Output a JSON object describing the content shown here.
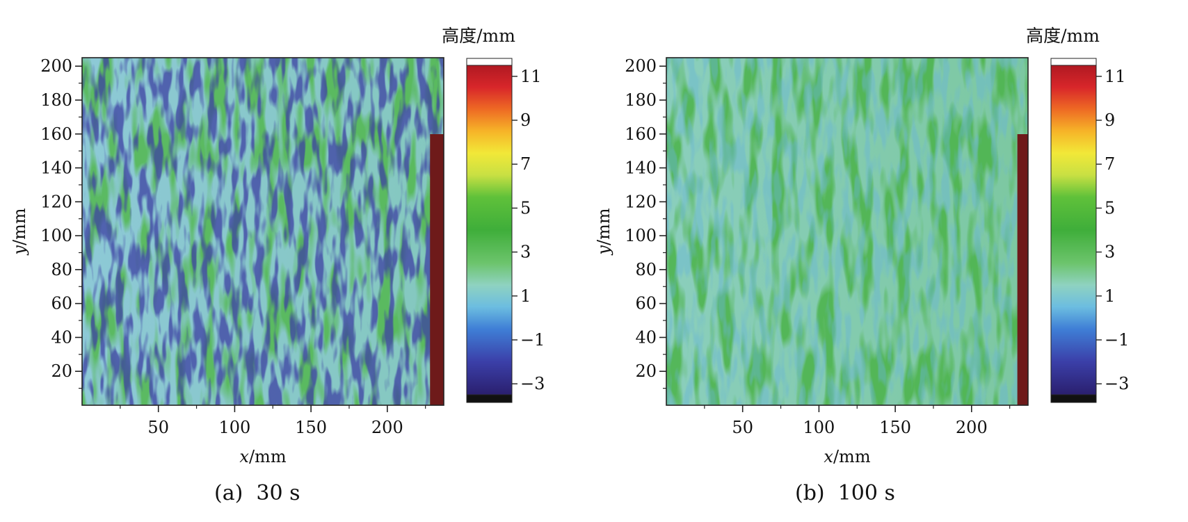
{
  "colorbar": {
    "title": "高度/mm",
    "ticks": [
      "11",
      "9",
      "7",
      "5",
      "3",
      "1",
      "−1",
      "−3"
    ],
    "tick_values": [
      11,
      9,
      7,
      5,
      3,
      1,
      -1,
      -3
    ],
    "range": [
      -3.5,
      11.5
    ],
    "colors": {
      "below_min": "#111111",
      "above_max": "#ffffff",
      "stops": [
        {
          "value": -3.5,
          "color": "#2a1f6e"
        },
        {
          "value": -2.0,
          "color": "#3b3fa8"
        },
        {
          "value": -0.5,
          "color": "#3f7fd6"
        },
        {
          "value": 0.5,
          "color": "#6cbde0"
        },
        {
          "value": 1.5,
          "color": "#8fd2c0"
        },
        {
          "value": 2.5,
          "color": "#6cc46c"
        },
        {
          "value": 4.0,
          "color": "#3fae3a"
        },
        {
          "value": 5.5,
          "color": "#5fc13a"
        },
        {
          "value": 6.5,
          "color": "#c8e043"
        },
        {
          "value": 7.5,
          "color": "#f2e838"
        },
        {
          "value": 8.5,
          "color": "#f6b428"
        },
        {
          "value": 9.5,
          "color": "#ee6a24"
        },
        {
          "value": 10.5,
          "color": "#d8262a"
        },
        {
          "value": 11.5,
          "color": "#b01922"
        }
      ]
    }
  },
  "chart_data": [
    {
      "type": "heatmap",
      "caption": "(a)  30 s",
      "xlabel_var": "x",
      "xlabel_unit": "/mm",
      "ylabel_var": "y",
      "ylabel_unit": "/mm",
      "xlim": [
        0,
        237
      ],
      "ylim": [
        0,
        205
      ],
      "xticks": [
        50,
        100,
        150,
        200
      ],
      "yticks": [
        20,
        40,
        60,
        80,
        100,
        120,
        140,
        160,
        180,
        200
      ],
      "z_unit": "mm",
      "mean_height": 1.0,
      "height_range_estimate": [
        -2.5,
        3.5
      ],
      "edge_region_height": 11,
      "edge_region_x": [
        228,
        237
      ],
      "colors": {
        "base": "#8ec9d9",
        "mid": "#7cc6a8",
        "high": "#52b84f",
        "low": "#3c3fa3",
        "edge": "#6e1a1a"
      }
    },
    {
      "type": "heatmap",
      "caption": "(b)  100 s",
      "xlabel_var": "x",
      "xlabel_unit": "/mm",
      "ylabel_var": "y",
      "ylabel_unit": "/mm",
      "xlim": [
        0,
        237
      ],
      "ylim": [
        0,
        205
      ],
      "xticks": [
        50,
        100,
        150,
        200
      ],
      "yticks": [
        20,
        40,
        60,
        80,
        100,
        120,
        140,
        160,
        180,
        200
      ],
      "z_unit": "mm",
      "mean_height": 2.0,
      "height_range_estimate": [
        0.5,
        4.0
      ],
      "edge_region_height": 11,
      "edge_region_x": [
        230,
        237
      ],
      "colors": {
        "base": "#8ccfbf",
        "mid": "#6fc288",
        "high": "#4cb348",
        "low": "#6ab6d6",
        "edge": "#6e1a1a"
      }
    }
  ]
}
